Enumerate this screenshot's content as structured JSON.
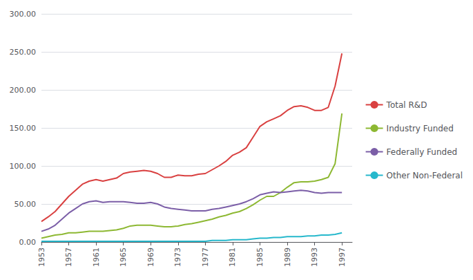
{
  "chart_data": {
    "type": "line",
    "x": [
      1953,
      1954,
      1955,
      1956,
      1957,
      1958,
      1959,
      1960,
      1961,
      1962,
      1963,
      1964,
      1965,
      1966,
      1967,
      1968,
      1969,
      1970,
      1971,
      1972,
      1973,
      1974,
      1975,
      1976,
      1977,
      1978,
      1979,
      1980,
      1981,
      1982,
      1983,
      1984,
      1985,
      1986,
      1987,
      1988,
      1989,
      1990,
      1991,
      1992,
      1993,
      1994,
      1995,
      1996,
      1997
    ],
    "series": [
      {
        "name": "Total R&D",
        "color": "#d94040",
        "values": [
          27,
          33,
          40,
          50,
          60,
          68,
          76,
          80,
          82,
          80,
          82,
          84,
          90,
          92,
          93,
          94,
          93,
          90,
          85,
          85,
          88,
          87,
          87,
          89,
          90,
          95,
          100,
          106,
          114,
          118,
          124,
          138,
          152,
          158,
          162,
          166,
          173,
          178,
          179,
          177,
          173,
          173,
          177,
          205,
          248
        ]
      },
      {
        "name": "Industry Funded",
        "color": "#8db832",
        "values": [
          5,
          7,
          9,
          10,
          12,
          12,
          13,
          14,
          14,
          14,
          15,
          16,
          18,
          21,
          22,
          22,
          22,
          21,
          20,
          20,
          21,
          23,
          24,
          26,
          28,
          30,
          33,
          35,
          38,
          40,
          44,
          49,
          55,
          60,
          60,
          65,
          72,
          78,
          79,
          79,
          80,
          82,
          85,
          103,
          169
        ]
      },
      {
        "name": "Federally Funded",
        "color": "#7b5ea7",
        "values": [
          14,
          17,
          22,
          30,
          38,
          44,
          50,
          53,
          54,
          52,
          53,
          53,
          53,
          52,
          51,
          51,
          52,
          50,
          46,
          44,
          43,
          42,
          41,
          41,
          41,
          43,
          44,
          46,
          48,
          50,
          53,
          57,
          62,
          64,
          66,
          65,
          66,
          67,
          68,
          67,
          65,
          64,
          65,
          65,
          65
        ]
      },
      {
        "name": "Other Non-Federal",
        "color": "#26b8cc",
        "values": [
          1,
          1,
          1,
          1,
          1,
          1,
          1,
          1,
          1,
          1,
          1,
          1,
          1,
          1,
          1,
          1,
          1,
          1,
          1,
          1,
          1,
          1,
          1,
          1,
          1,
          2,
          2,
          2,
          3,
          3,
          3,
          4,
          5,
          5,
          6,
          6,
          7,
          7,
          7,
          8,
          8,
          9,
          9,
          10,
          12
        ]
      }
    ],
    "xlim": [
      1953,
      1998.5
    ],
    "xticks": [
      1953,
      1957,
      1961,
      1965,
      1969,
      1973,
      1977,
      1981,
      1985,
      1989,
      1993,
      1997
    ],
    "ylim": [
      0,
      300
    ],
    "yticks": [
      {
        "value": 0,
        "label": "0.00"
      },
      {
        "value": 50,
        "label": "50.00"
      },
      {
        "value": 100,
        "label": "100.00"
      },
      {
        "value": 150,
        "label": "150.00"
      },
      {
        "value": 200,
        "label": "200.00"
      },
      {
        "value": 250,
        "label": "250.00"
      },
      {
        "value": 300,
        "label": "300.00"
      }
    ],
    "grid": true,
    "legend": "right"
  }
}
